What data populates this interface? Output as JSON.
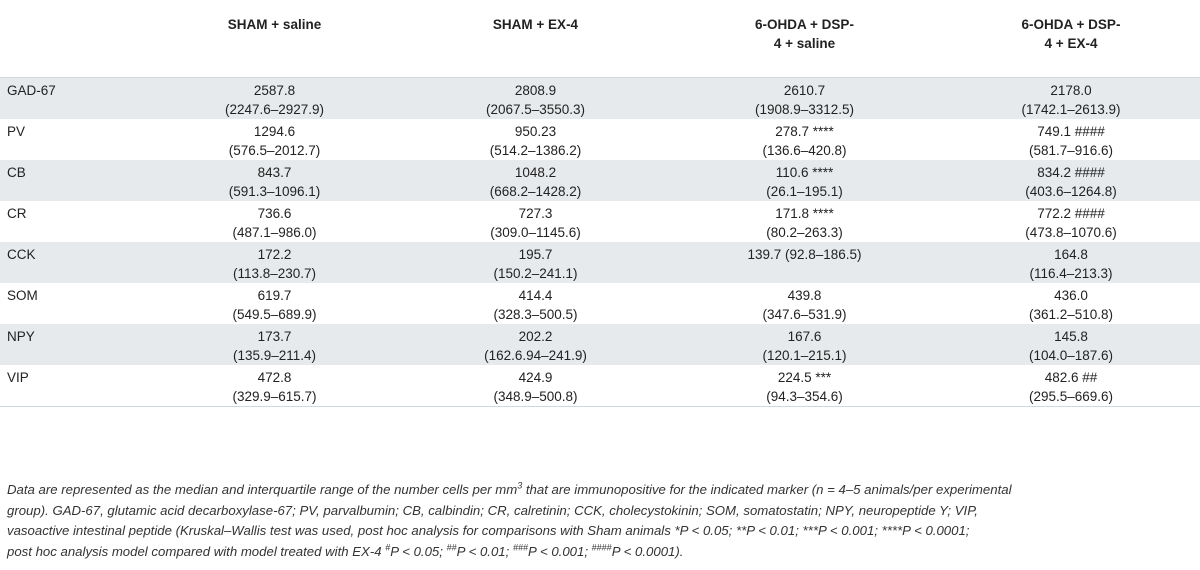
{
  "columns": [
    "",
    "SHAM + saline",
    "SHAM + EX-4",
    "6-OHDA + DSP-4 + saline",
    "6-OHDA + DSP-4 + EX-4"
  ],
  "header_lines": {
    "col1": [
      "SHAM + saline"
    ],
    "col2": [
      "SHAM + EX-4"
    ],
    "col3": [
      "6-OHDA + DSP-",
      "4 + saline"
    ],
    "col4": [
      "6-OHDA + DSP-",
      "4 + EX-4"
    ]
  },
  "rows": [
    {
      "marker": "GAD-67",
      "cells": [
        [
          "2587.8",
          "(2247.6–2927.9)"
        ],
        [
          "2808.9",
          "(2067.5–3550.3)"
        ],
        [
          "2610.7",
          "(1908.9–3312.5)"
        ],
        [
          "2178.0",
          "(1742.1–2613.9)"
        ]
      ]
    },
    {
      "marker": "PV",
      "cells": [
        [
          "1294.6",
          "(576.5–2012.7)"
        ],
        [
          "950.23",
          "(514.2–1386.2)"
        ],
        [
          "278.7 ****",
          "(136.6–420.8)"
        ],
        [
          "749.1 ####",
          "(581.7–916.6)"
        ]
      ]
    },
    {
      "marker": "CB",
      "cells": [
        [
          "843.7",
          "(591.3–1096.1)"
        ],
        [
          "1048.2",
          "(668.2–1428.2)"
        ],
        [
          "110.6 ****",
          "(26.1–195.1)"
        ],
        [
          "834.2 ####",
          "(403.6–1264.8)"
        ]
      ]
    },
    {
      "marker": "CR",
      "cells": [
        [
          "736.6",
          "(487.1–986.0)"
        ],
        [
          "727.3",
          "(309.0–1145.6)"
        ],
        [
          "171.8 ****",
          "(80.2–263.3)"
        ],
        [
          "772.2 ####",
          "(473.8–1070.6)"
        ]
      ]
    },
    {
      "marker": "CCK",
      "cells": [
        [
          "172.2",
          "(113.8–230.7)"
        ],
        [
          "195.7",
          "(150.2–241.1)"
        ],
        [
          "139.7 (92.8–186.5)",
          ""
        ],
        [
          "164.8",
          "(116.4–213.3)"
        ]
      ]
    },
    {
      "marker": "SOM",
      "cells": [
        [
          "619.7",
          "(549.5–689.9)"
        ],
        [
          "414.4",
          "(328.3–500.5)"
        ],
        [
          "439.8",
          "(347.6–531.9)"
        ],
        [
          "436.0",
          "(361.2–510.8)"
        ]
      ]
    },
    {
      "marker": "NPY",
      "cells": [
        [
          "173.7",
          "(135.9–211.4)"
        ],
        [
          "202.2",
          "(162.6.94–241.9)"
        ],
        [
          "167.6",
          "(120.1–215.1)"
        ],
        [
          "145.8",
          "(104.0–187.6)"
        ]
      ]
    },
    {
      "marker": "VIP",
      "cells": [
        [
          "472.8",
          "(329.9–615.7)"
        ],
        [
          "424.9",
          "(348.9–500.8)"
        ],
        [
          "224.5 ***",
          "(94.3–354.6)"
        ],
        [
          "482.6 ##",
          "(295.5–669.6)"
        ]
      ]
    }
  ],
  "footnote": {
    "l1a": "Data are represented as the median and interquartile range of the number cells per mm",
    "l1sup": "3",
    "l1b": " that are immunopositive for the indicated marker (n = 4–5 animals/per experimental",
    "l2": "group). GAD-67, glutamic acid decarboxylase-67; PV, parvalbumin; CB, calbindin; CR, calretinin; CCK, cholecystokinin; SOM, somatostatin; NPY, neuropeptide Y; VIP,",
    "l3": "vasoactive intestinal peptide (Kruskal–Wallis test was used, post hoc analysis for comparisons with Sham animals *P < 0.05; **P < 0.01; ***P < 0.001; ****P < 0.0001;",
    "l4a": "post hoc analysis model compared with model treated with EX-4 ",
    "s1": "#",
    "l4b": "P < 0.05; ",
    "s2": "##",
    "l4c": "P < 0.01; ",
    "s3": "###",
    "l4d": "P < 0.001; ",
    "s4": "####",
    "l4e": "P < 0.0001)."
  }
}
